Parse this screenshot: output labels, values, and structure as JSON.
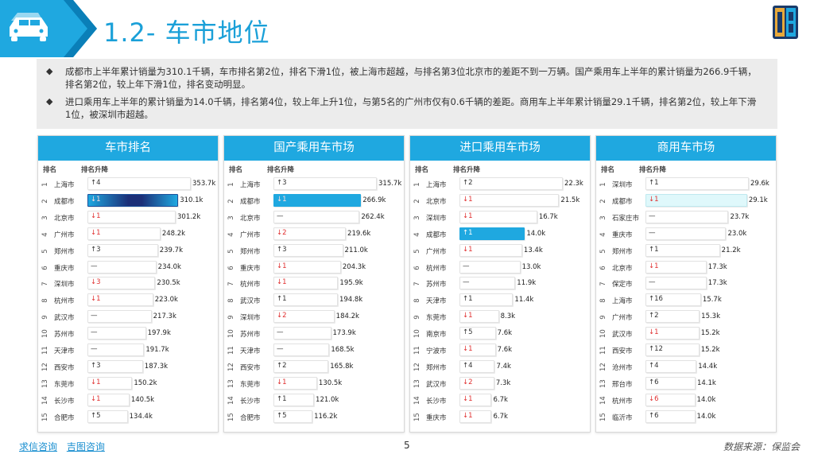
{
  "header": {
    "title": "1.2- 车市地位"
  },
  "summary": {
    "bullets": [
      "成都市上半年累计销量为310.1千辆，车市排名第2位，排名下滑1位，被上海市超越，与排名第3位北京市的差距不到一万辆。国产乘用车上半年的累计销量为266.9千辆，排名第2位，较上年下滑1位，排名变动明显。",
      "进口乘用车上半年的累计销量为14.0千辆，排名第4位，较上年上升1位，与第5名的广州市仅有0.6千辆的差距。商用车上半年累计销量29.1千辆，排名第2位，较上年下滑1位，被深圳市超越。"
    ]
  },
  "columns": {
    "rank": "排名",
    "change": "排名升降"
  },
  "panels": [
    {
      "title": "车市排名",
      "max": 353.7,
      "rows": [
        {
          "rank": "1",
          "city": "上海市",
          "dir": "up",
          "chg": "↑4",
          "value": 353.7,
          "label": "353.7k"
        },
        {
          "rank": "2",
          "city": "成都市",
          "dir": "down",
          "chg": "↓1",
          "value": 310.1,
          "label": "310.1k",
          "highlight": "gradient"
        },
        {
          "rank": "3",
          "city": "北京市",
          "dir": "down",
          "chg": "↓1",
          "value": 301.2,
          "label": "301.2k"
        },
        {
          "rank": "4",
          "city": "广州市",
          "dir": "down",
          "chg": "↓1",
          "value": 248.2,
          "label": "248.2k"
        },
        {
          "rank": "5",
          "city": "郑州市",
          "dir": "up",
          "chg": "↑3",
          "value": 239.7,
          "label": "239.7k"
        },
        {
          "rank": "6",
          "city": "重庆市",
          "dir": "flat",
          "chg": "—",
          "value": 234.0,
          "label": "234.0k"
        },
        {
          "rank": "7",
          "city": "深圳市",
          "dir": "down",
          "chg": "↓3",
          "value": 230.5,
          "label": "230.5k"
        },
        {
          "rank": "8",
          "city": "杭州市",
          "dir": "down",
          "chg": "↓1",
          "value": 223.0,
          "label": "223.0k"
        },
        {
          "rank": "9",
          "city": "武汉市",
          "dir": "flat",
          "chg": "—",
          "value": 217.3,
          "label": "217.3k"
        },
        {
          "rank": "10",
          "city": "苏州市",
          "dir": "flat",
          "chg": "—",
          "value": 197.9,
          "label": "197.9k"
        },
        {
          "rank": "11",
          "city": "天津市",
          "dir": "flat",
          "chg": "—",
          "value": 191.7,
          "label": "191.7k"
        },
        {
          "rank": "12",
          "city": "西安市",
          "dir": "up",
          "chg": "↑3",
          "value": 187.3,
          "label": "187.3k"
        },
        {
          "rank": "13",
          "city": "东莞市",
          "dir": "down",
          "chg": "↓1",
          "value": 150.2,
          "label": "150.2k"
        },
        {
          "rank": "14",
          "city": "长沙市",
          "dir": "down",
          "chg": "↓1",
          "value": 140.5,
          "label": "140.5k"
        },
        {
          "rank": "15",
          "city": "合肥市",
          "dir": "up",
          "chg": "↑5",
          "value": 134.4,
          "label": "134.4k"
        }
      ]
    },
    {
      "title": "国产乘用车市场",
      "max": 315.7,
      "rows": [
        {
          "rank": "1",
          "city": "上海市",
          "dir": "up",
          "chg": "↑3",
          "value": 315.7,
          "label": "315.7k"
        },
        {
          "rank": "2",
          "city": "成都市",
          "dir": "down",
          "chg": "↓1",
          "value": 266.9,
          "label": "266.9k",
          "highlight": "blue"
        },
        {
          "rank": "3",
          "city": "北京市",
          "dir": "flat",
          "chg": "—",
          "value": 262.4,
          "label": "262.4k"
        },
        {
          "rank": "4",
          "city": "广州市",
          "dir": "down",
          "chg": "↓2",
          "value": 219.6,
          "label": "219.6k"
        },
        {
          "rank": "5",
          "city": "郑州市",
          "dir": "up",
          "chg": "↑3",
          "value": 211.0,
          "label": "211.0k"
        },
        {
          "rank": "6",
          "city": "重庆市",
          "dir": "down",
          "chg": "↓1",
          "value": 204.3,
          "label": "204.3k"
        },
        {
          "rank": "7",
          "city": "杭州市",
          "dir": "down",
          "chg": "↓1",
          "value": 195.9,
          "label": "195.9k"
        },
        {
          "rank": "8",
          "city": "武汉市",
          "dir": "up",
          "chg": "↑1",
          "value": 194.8,
          "label": "194.8k"
        },
        {
          "rank": "9",
          "city": "深圳市",
          "dir": "down",
          "chg": "↓2",
          "value": 184.2,
          "label": "184.2k"
        },
        {
          "rank": "10",
          "city": "苏州市",
          "dir": "flat",
          "chg": "—",
          "value": 173.9,
          "label": "173.9k"
        },
        {
          "rank": "11",
          "city": "天津市",
          "dir": "flat",
          "chg": "—",
          "value": 168.5,
          "label": "168.5k"
        },
        {
          "rank": "12",
          "city": "西安市",
          "dir": "up",
          "chg": "↑2",
          "value": 165.8,
          "label": "165.8k"
        },
        {
          "rank": "13",
          "city": "东莞市",
          "dir": "down",
          "chg": "↓1",
          "value": 130.5,
          "label": "130.5k"
        },
        {
          "rank": "14",
          "city": "长沙市",
          "dir": "up",
          "chg": "↑1",
          "value": 121.0,
          "label": "121.0k"
        },
        {
          "rank": "15",
          "city": "合肥市",
          "dir": "up",
          "chg": "↑5",
          "value": 116.2,
          "label": "116.2k"
        }
      ]
    },
    {
      "title": "进口乘用车市场",
      "max": 22.3,
      "rows": [
        {
          "rank": "1",
          "city": "上海市",
          "dir": "up",
          "chg": "↑2",
          "value": 22.3,
          "label": "22.3k"
        },
        {
          "rank": "2",
          "city": "北京市",
          "dir": "down",
          "chg": "↓1",
          "value": 21.5,
          "label": "21.5k"
        },
        {
          "rank": "3",
          "city": "深圳市",
          "dir": "down",
          "chg": "↓1",
          "value": 16.7,
          "label": "16.7k"
        },
        {
          "rank": "4",
          "city": "成都市",
          "dir": "up",
          "chg": "↑1",
          "value": 14.0,
          "label": "14.0k",
          "highlight": "blue"
        },
        {
          "rank": "5",
          "city": "广州市",
          "dir": "down",
          "chg": "↓1",
          "value": 13.4,
          "label": "13.4k"
        },
        {
          "rank": "6",
          "city": "杭州市",
          "dir": "flat",
          "chg": "—",
          "value": 13.0,
          "label": "13.0k"
        },
        {
          "rank": "7",
          "city": "苏州市",
          "dir": "flat",
          "chg": "—",
          "value": 11.9,
          "label": "11.9k"
        },
        {
          "rank": "8",
          "city": "天津市",
          "dir": "up",
          "chg": "↑1",
          "value": 11.4,
          "label": "11.4k"
        },
        {
          "rank": "9",
          "city": "东莞市",
          "dir": "down",
          "chg": "↓1",
          "value": 8.3,
          "label": "8.3k"
        },
        {
          "rank": "10",
          "city": "南京市",
          "dir": "up",
          "chg": "↑5",
          "value": 7.6,
          "label": "7.6k"
        },
        {
          "rank": "11",
          "city": "宁波市",
          "dir": "down",
          "chg": "↓1",
          "value": 7.6,
          "label": "7.6k"
        },
        {
          "rank": "12",
          "city": "郑州市",
          "dir": "up",
          "chg": "↑4",
          "value": 7.4,
          "label": "7.4k"
        },
        {
          "rank": "13",
          "city": "武汉市",
          "dir": "down",
          "chg": "↓2",
          "value": 7.3,
          "label": "7.3k"
        },
        {
          "rank": "14",
          "city": "长沙市",
          "dir": "down",
          "chg": "↓1",
          "value": 6.7,
          "label": "6.7k"
        },
        {
          "rank": "15",
          "city": "重庆市",
          "dir": "down",
          "chg": "↓1",
          "value": 6.7,
          "label": "6.7k"
        }
      ]
    },
    {
      "title": "商用车市场",
      "max": 29.6,
      "rows": [
        {
          "rank": "1",
          "city": "深圳市",
          "dir": "up",
          "chg": "↑1",
          "value": 29.6,
          "label": "29.6k"
        },
        {
          "rank": "2",
          "city": "成都市",
          "dir": "down",
          "chg": "↓1",
          "value": 29.1,
          "label": "29.1k",
          "highlight": "light"
        },
        {
          "rank": "3",
          "city": "石家庄市",
          "dir": "flat",
          "chg": "—",
          "value": 23.7,
          "label": "23.7k"
        },
        {
          "rank": "4",
          "city": "重庆市",
          "dir": "flat",
          "chg": "—",
          "value": 23.0,
          "label": "23.0k"
        },
        {
          "rank": "5",
          "city": "郑州市",
          "dir": "up",
          "chg": "↑1",
          "value": 21.2,
          "label": "21.2k"
        },
        {
          "rank": "6",
          "city": "北京市",
          "dir": "down",
          "chg": "↓1",
          "value": 17.3,
          "label": "17.3k"
        },
        {
          "rank": "7",
          "city": "保定市",
          "dir": "flat",
          "chg": "—",
          "value": 17.3,
          "label": "17.3k"
        },
        {
          "rank": "8",
          "city": "上海市",
          "dir": "up",
          "chg": "↑16",
          "value": 15.7,
          "label": "15.7k"
        },
        {
          "rank": "9",
          "city": "广州市",
          "dir": "up",
          "chg": "↑2",
          "value": 15.3,
          "label": "15.3k"
        },
        {
          "rank": "10",
          "city": "武汉市",
          "dir": "down",
          "chg": "↓1",
          "value": 15.2,
          "label": "15.2k"
        },
        {
          "rank": "11",
          "city": "西安市",
          "dir": "up",
          "chg": "↑12",
          "value": 15.2,
          "label": "15.2k"
        },
        {
          "rank": "12",
          "city": "沧州市",
          "dir": "up",
          "chg": "↑4",
          "value": 14.4,
          "label": "14.4k"
        },
        {
          "rank": "13",
          "city": "邢台市",
          "dir": "up",
          "chg": "↑6",
          "value": 14.1,
          "label": "14.1k"
        },
        {
          "rank": "14",
          "city": "杭州市",
          "dir": "down",
          "chg": "↓6",
          "value": 14.0,
          "label": "14.0k"
        },
        {
          "rank": "15",
          "city": "临沂市",
          "dir": "up",
          "chg": "↑6",
          "value": 14.0,
          "label": "14.0k"
        }
      ]
    }
  ],
  "footer": {
    "links": [
      "求信咨询",
      "吉图咨询"
    ],
    "page": "5",
    "source": "数据来源：保监会"
  },
  "colors": {
    "accent": "#1fa8e0",
    "down": "#e03030",
    "highlight_blue": "#1fa8e0",
    "highlight_light": "#dff8fb"
  }
}
